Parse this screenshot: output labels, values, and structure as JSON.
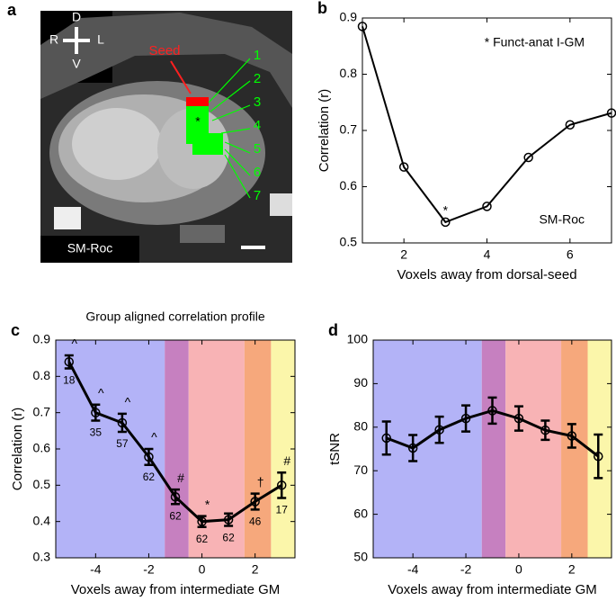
{
  "image_panel": {
    "panel_label": "a",
    "orientation": {
      "top": "D",
      "left": "R",
      "right": "L",
      "bottom": "V"
    },
    "seed_label": "Seed",
    "voxel_labels": [
      "1",
      "2",
      "3",
      "4",
      "5",
      "6",
      "7"
    ],
    "marker": "*",
    "subject": "SM-Roc"
  },
  "chart_data": [
    {
      "type": "line",
      "panel_label": "b",
      "xlabel": "Voxels away from dorsal-seed",
      "ylabel": "Correlation (r)",
      "x": [
        1,
        2,
        3,
        4,
        5,
        6,
        7
      ],
      "values": [
        0.885,
        0.635,
        0.537,
        0.565,
        0.652,
        0.71,
        0.731
      ],
      "point_annotations": [
        null,
        null,
        "*",
        null,
        null,
        null,
        null
      ],
      "note": "* Funct-anat I-GM",
      "subject": "SM-Roc",
      "xlim": [
        1,
        7
      ],
      "xticks": [
        2,
        4,
        6
      ],
      "ylim": [
        0.5,
        0.9
      ],
      "yticks": [
        0.5,
        0.6,
        0.7,
        0.8,
        0.9
      ],
      "color": "#000000"
    },
    {
      "type": "errorline",
      "panel_label": "c",
      "title": "Group aligned correlation profile",
      "xlabel": "Voxels away from intermediate GM",
      "ylabel": "Correlation (r)",
      "x": [
        -5,
        -4,
        -3,
        -2,
        -1,
        0,
        1,
        2,
        3
      ],
      "values": [
        0.84,
        0.7,
        0.672,
        0.578,
        0.468,
        0.4,
        0.405,
        0.455,
        0.5
      ],
      "errors": [
        0.018,
        0.022,
        0.025,
        0.022,
        0.02,
        0.015,
        0.017,
        0.022,
        0.035
      ],
      "point_annotations": [
        "^",
        "^",
        "^",
        "^",
        "#",
        "*",
        null,
        "†",
        "#"
      ],
      "n_labels": [
        18,
        35,
        57,
        62,
        62,
        62,
        62,
        46,
        17
      ],
      "regions": [
        {
          "start": -5.5,
          "end": -1.4,
          "color": "#b3b3f7"
        },
        {
          "start": -1.4,
          "end": -0.5,
          "color": "#c680c0"
        },
        {
          "start": -0.5,
          "end": 1.6,
          "color": "#f8b3b5"
        },
        {
          "start": 1.6,
          "end": 2.6,
          "color": "#f6a87c"
        },
        {
          "start": 2.6,
          "end": 3.5,
          "color": "#fbf6aa"
        }
      ],
      "xlim": [
        -5.5,
        3.5
      ],
      "xticks": [
        -4,
        -2,
        0,
        2
      ],
      "ylim": [
        0.3,
        0.9
      ],
      "yticks": [
        0.3,
        0.4,
        0.5,
        0.6,
        0.7,
        0.8,
        0.9
      ],
      "color": "#000000"
    },
    {
      "type": "errorline",
      "panel_label": "d",
      "xlabel": "Voxels away from intermediate GM",
      "ylabel": "tSNR",
      "x": [
        -5,
        -4,
        -3,
        -2,
        -1,
        0,
        1,
        2,
        3
      ],
      "values": [
        77.5,
        75.2,
        79.4,
        82,
        83.8,
        82,
        79.3,
        78,
        73.3
      ],
      "errors": [
        3.8,
        3,
        3,
        3,
        3,
        2.8,
        2.2,
        2.7,
        5
      ],
      "regions": [
        {
          "start": -5.5,
          "end": -1.4,
          "color": "#b3b3f7"
        },
        {
          "start": -1.4,
          "end": -0.5,
          "color": "#c680c0"
        },
        {
          "start": -0.5,
          "end": 1.6,
          "color": "#f8b3b5"
        },
        {
          "start": 1.6,
          "end": 2.6,
          "color": "#f6a87c"
        },
        {
          "start": 2.6,
          "end": 3.5,
          "color": "#fbf6aa"
        }
      ],
      "xlim": [
        -5.5,
        3.5
      ],
      "xticks": [
        -4,
        -2,
        0,
        2
      ],
      "ylim": [
        50,
        100
      ],
      "yticks": [
        50,
        60,
        70,
        80,
        90,
        100
      ],
      "color": "#000000"
    }
  ]
}
